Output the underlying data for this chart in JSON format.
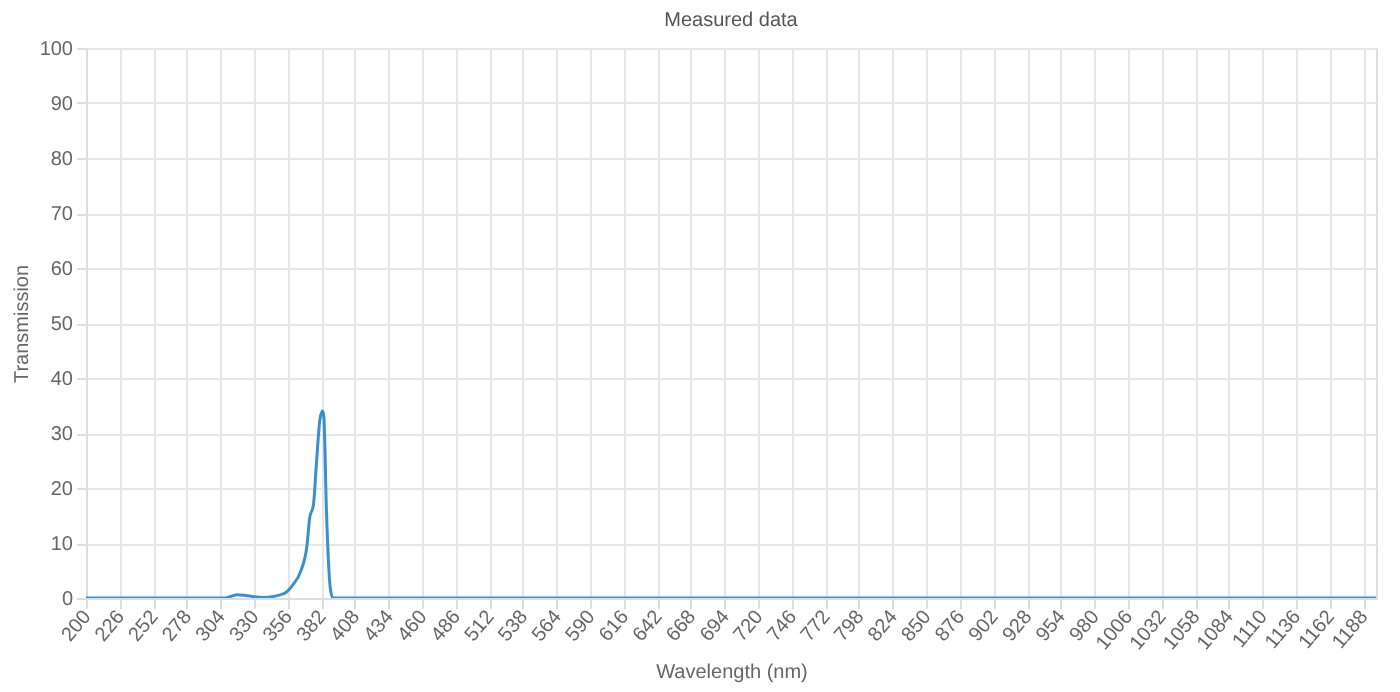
{
  "chart_data": {
    "type": "line",
    "title": "Measured data",
    "xlabel": "Wavelength (nm)",
    "ylabel": "Transmission",
    "series": [
      {
        "color": "#3a8fcf",
        "x": [
          200,
          307,
          317,
          325,
          337,
          353,
          360,
          366,
          371,
          373,
          376,
          378,
          381,
          383,
          384,
          386,
          389,
          391,
          1198
        ],
        "values": [
          0,
          0,
          0.6,
          0.4,
          0.1,
          0.8,
          2.4,
          4.8,
          9.6,
          14.5,
          17,
          23.5,
          32.5,
          34,
          33,
          16,
          1.8,
          0,
          0
        ]
      }
    ],
    "xlim": [
      200,
      1198
    ],
    "xticks": [
      200,
      226,
      252,
      278,
      304,
      330,
      356,
      382,
      408,
      434,
      460,
      486,
      512,
      538,
      564,
      590,
      616,
      642,
      668,
      694,
      720,
      746,
      772,
      798,
      824,
      850,
      876,
      902,
      928,
      954,
      980,
      1006,
      1032,
      1058,
      1084,
      1110,
      1136,
      1162,
      1188
    ],
    "ylim": [
      0,
      100
    ],
    "yticks": [
      0,
      10,
      20,
      30,
      40,
      50,
      60,
      70,
      80,
      90,
      100
    ],
    "grid": true,
    "marker": "none",
    "line_style": "solid"
  }
}
